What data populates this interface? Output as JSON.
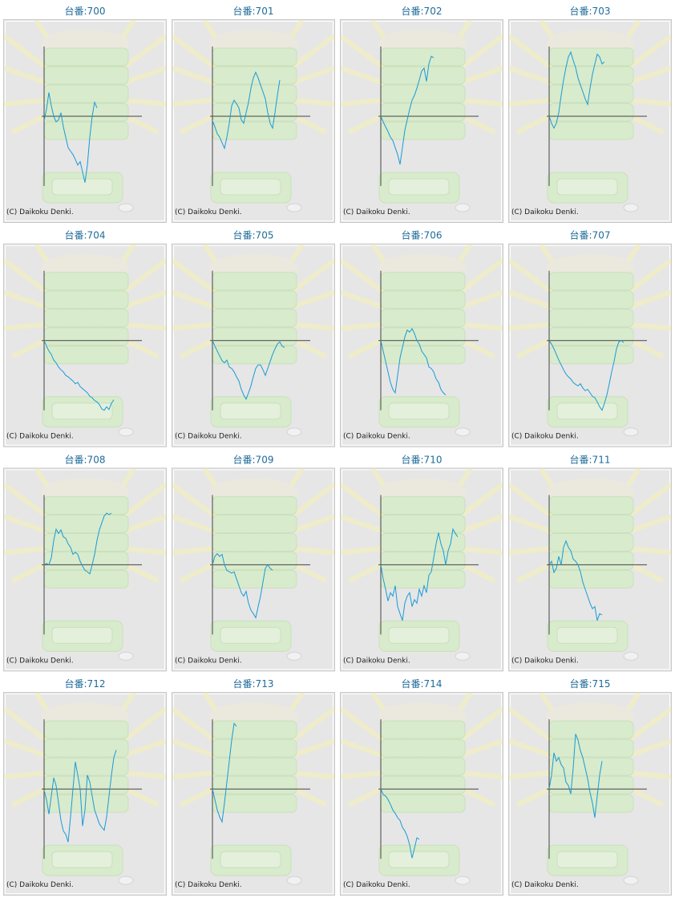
{
  "chart_data": [
    {
      "type": "line",
      "title": "台番:700",
      "caption": "(C) Daikoku Denki.",
      "xlim": [
        0,
        40
      ],
      "ylim": [
        -100,
        100
      ],
      "color": "#1a9ad6",
      "values": [
        -6,
        10,
        34,
        15,
        0,
        -8,
        -5,
        5,
        -15,
        -30,
        -45,
        -50,
        -55,
        -62,
        -70,
        -65,
        -80,
        -95,
        -70,
        -30,
        0,
        20,
        12
      ]
    },
    {
      "type": "line",
      "title": "台番:701",
      "caption": "(C) Daikoku Denki.",
      "xlim": [
        0,
        40
      ],
      "ylim": [
        -100,
        100
      ],
      "color": "#1a9ad6",
      "values": [
        -6,
        -15,
        -25,
        -30,
        -38,
        -46,
        -30,
        -10,
        15,
        23,
        18,
        12,
        -5,
        -10,
        5,
        20,
        40,
        55,
        63,
        55,
        45,
        35,
        25,
        5,
        -10,
        -17,
        5,
        30,
        52
      ]
    },
    {
      "type": "line",
      "title": "台番:702",
      "caption": "(C) Daikoku Denki.",
      "xlim": [
        0,
        40
      ],
      "ylim": [
        -100,
        100
      ],
      "color": "#1a9ad6",
      "values": [
        0,
        -8,
        -15,
        -22,
        -30,
        -35,
        -45,
        -55,
        -69,
        -45,
        -20,
        -5,
        10,
        23,
        30,
        40,
        52,
        65,
        69,
        50,
        75,
        86,
        84
      ]
    },
    {
      "type": "line",
      "title": "台番:703",
      "caption": "(C) Daikoku Denki.",
      "xlim": [
        0,
        40
      ],
      "ylim": [
        -100,
        100
      ],
      "color": "#1a9ad6",
      "values": [
        0,
        -10,
        -17,
        -10,
        5,
        30,
        52,
        70,
        85,
        92,
        80,
        70,
        55,
        45,
        35,
        25,
        17,
        40,
        60,
        75,
        89,
        85,
        75,
        78
      ]
    },
    {
      "type": "line",
      "title": "台番:704",
      "caption": "(C) Daikoku Denki.",
      "xlim": [
        0,
        40
      ],
      "ylim": [
        -100,
        100
      ],
      "color": "#1a9ad6",
      "values": [
        0,
        -8,
        -15,
        -20,
        -28,
        -32,
        -38,
        -42,
        -45,
        -50,
        -52,
        -55,
        -58,
        -62,
        -60,
        -66,
        -69,
        -72,
        -75,
        -80,
        -82,
        -86,
        -88,
        -92,
        -98,
        -100,
        -95,
        -99,
        -90,
        -85
      ]
    },
    {
      "type": "line",
      "title": "台番:705",
      "caption": "(C) Daikoku Denki.",
      "xlim": [
        0,
        40
      ],
      "ylim": [
        -100,
        100
      ],
      "color": "#1a9ad6",
      "values": [
        0,
        -8,
        -15,
        -22,
        -29,
        -32,
        -28,
        -38,
        -40,
        -45,
        -52,
        -58,
        -70,
        -78,
        -84,
        -75,
        -65,
        -52,
        -40,
        -35,
        -35,
        -42,
        -50,
        -40,
        -30,
        -20,
        -12,
        -5,
        -2,
        -8,
        -10
      ]
    },
    {
      "type": "line",
      "title": "台番:706",
      "caption": "(C) Daikoku Denki.",
      "xlim": [
        0,
        40
      ],
      "ylim": [
        -100,
        100
      ],
      "color": "#1a9ad6",
      "values": [
        0,
        -15,
        -30,
        -45,
        -60,
        -70,
        -75,
        -50,
        -25,
        -10,
        5,
        15,
        12,
        17,
        10,
        0,
        -5,
        -15,
        -20,
        -25,
        -38,
        -40,
        -45,
        -55,
        -60,
        -70,
        -75,
        -78
      ]
    },
    {
      "type": "line",
      "title": "台番:707",
      "caption": "(C) Daikoku Denki.",
      "xlim": [
        0,
        40
      ],
      "ylim": [
        -100,
        100
      ],
      "color": "#1a9ad6",
      "values": [
        0,
        -5,
        -12,
        -20,
        -28,
        -35,
        -42,
        -48,
        -52,
        -55,
        -60,
        -63,
        -65,
        -62,
        -68,
        -72,
        -70,
        -75,
        -80,
        -82,
        -88,
        -95,
        -100,
        -90,
        -78,
        -62,
        -45,
        -30,
        -12,
        -2,
        0,
        -3
      ]
    },
    {
      "type": "line",
      "title": "台番:708",
      "caption": "(C) Daikoku Denki.",
      "xlim": [
        0,
        40
      ],
      "ylim": [
        -100,
        100
      ],
      "color": "#1a9ad6",
      "values": [
        0,
        2,
        0,
        10,
        35,
        51,
        45,
        50,
        40,
        38,
        30,
        25,
        15,
        18,
        15,
        5,
        -2,
        -8,
        -10,
        -13,
        0,
        15,
        35,
        50,
        60,
        70,
        74,
        72,
        74
      ]
    },
    {
      "type": "line",
      "title": "台番:709",
      "caption": "(C) Daikoku Denki.",
      "xlim": [
        0,
        40
      ],
      "ylim": [
        -100,
        100
      ],
      "color": "#1a9ad6",
      "values": [
        0,
        12,
        16,
        12,
        15,
        0,
        -8,
        -10,
        -12,
        -10,
        -20,
        -30,
        -40,
        -45,
        -38,
        -55,
        -65,
        -70,
        -76,
        -60,
        -45,
        -25,
        -5,
        0,
        -5,
        -8
      ]
    },
    {
      "type": "line",
      "title": "台番:710",
      "caption": "(C) Daikoku Denki.",
      "xlim": [
        0,
        40
      ],
      "ylim": [
        -100,
        100
      ],
      "color": "#1a9ad6",
      "values": [
        0,
        -20,
        -35,
        -52,
        -40,
        -45,
        -30,
        -60,
        -70,
        -80,
        -55,
        -45,
        -40,
        -60,
        -50,
        -55,
        -35,
        -45,
        -30,
        -40,
        -15,
        -10,
        10,
        30,
        46,
        30,
        20,
        0,
        20,
        30,
        51,
        45,
        40
      ]
    },
    {
      "type": "line",
      "title": "台番:711",
      "caption": "(C) Daikoku Denki.",
      "xlim": [
        0,
        40
      ],
      "ylim": [
        -100,
        100
      ],
      "color": "#1a9ad6",
      "values": [
        0,
        5,
        -11,
        -5,
        12,
        0,
        25,
        34,
        25,
        20,
        8,
        5,
        0,
        -10,
        -25,
        -35,
        -45,
        -55,
        -63,
        -60,
        -80,
        -70,
        -72
      ]
    },
    {
      "type": "line",
      "title": "台番:712",
      "caption": "(C) Daikoku Denki.",
      "xlim": [
        0,
        40
      ],
      "ylim": [
        -100,
        100
      ],
      "color": "#1a9ad6",
      "values": [
        -2,
        -15,
        -36,
        -10,
        16,
        5,
        -20,
        -45,
        -60,
        -65,
        -76,
        -40,
        0,
        39,
        20,
        0,
        -53,
        -30,
        20,
        10,
        -10,
        -30,
        -40,
        -50,
        -55,
        -59,
        -40,
        -10,
        20,
        45,
        56
      ]
    },
    {
      "type": "line",
      "title": "台番:713",
      "caption": "(C) Daikoku Denki.",
      "xlim": [
        0,
        40
      ],
      "ylim": [
        -100,
        100
      ],
      "color": "#1a9ad6",
      "values": [
        0,
        -15,
        -30,
        -40,
        -47,
        -20,
        10,
        40,
        70,
        94,
        90
      ]
    },
    {
      "type": "line",
      "title": "台番:714",
      "caption": "(C) Daikoku Denki.",
      "xlim": [
        0,
        40
      ],
      "ylim": [
        -100,
        100
      ],
      "color": "#1a9ad6",
      "values": [
        0,
        -8,
        -10,
        -15,
        -22,
        -30,
        -35,
        -41,
        -45,
        -55,
        -60,
        -68,
        -80,
        -99,
        -85,
        -70,
        -72
      ]
    },
    {
      "type": "line",
      "title": "台番:715",
      "caption": "(C) Daikoku Denki.",
      "xlim": [
        0,
        40
      ],
      "ylim": [
        -100,
        100
      ],
      "color": "#1a9ad6",
      "values": [
        0,
        20,
        52,
        40,
        45,
        35,
        30,
        10,
        5,
        -7,
        30,
        79,
        70,
        55,
        45,
        30,
        15,
        -5,
        -20,
        -41,
        -10,
        20,
        40
      ]
    }
  ]
}
